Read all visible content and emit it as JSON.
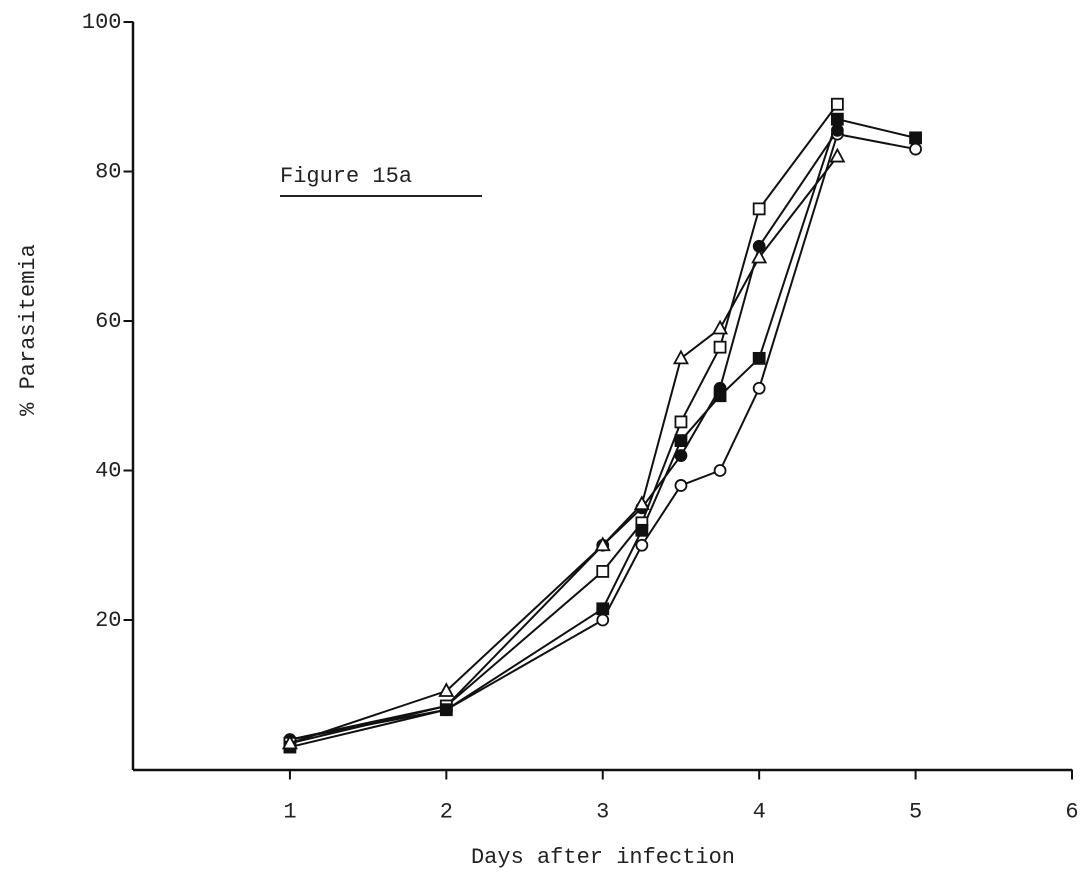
{
  "chart_data": {
    "type": "line",
    "annotation": "Figure 15a",
    "x_label": "Days after infection",
    "y_label": "% Parasitemia",
    "x": [
      1,
      2,
      3,
      3.25,
      3.5,
      3.75,
      4,
      4.5,
      5
    ],
    "series": [
      {
        "marker": "open-circle",
        "color": "#111",
        "values": [
          4,
          8,
          20,
          30,
          38,
          40,
          51,
          85,
          83
        ]
      },
      {
        "marker": "filled-circle",
        "color": "#111",
        "values": [
          4,
          8.5,
          30,
          35,
          42,
          51,
          70,
          85.5,
          null
        ]
      },
      {
        "marker": "open-square",
        "color": "#111",
        "values": [
          3.5,
          8.5,
          26.5,
          33,
          46.5,
          56.5,
          75,
          89,
          null
        ]
      },
      {
        "marker": "filled-square",
        "color": "#111",
        "values": [
          3,
          8,
          21.5,
          32,
          44,
          50,
          55,
          87,
          84.5
        ]
      },
      {
        "marker": "open-triangle",
        "color": "#111",
        "values": [
          3.5,
          10.5,
          30,
          35.5,
          55,
          59,
          68.5,
          82,
          null
        ]
      }
    ],
    "xlim": [
      0,
      6
    ],
    "xticks": [
      1,
      2,
      3,
      4,
      5,
      6
    ],
    "ylim": [
      0,
      100
    ],
    "yticks": [
      20,
      40,
      60,
      80,
      100
    ]
  }
}
